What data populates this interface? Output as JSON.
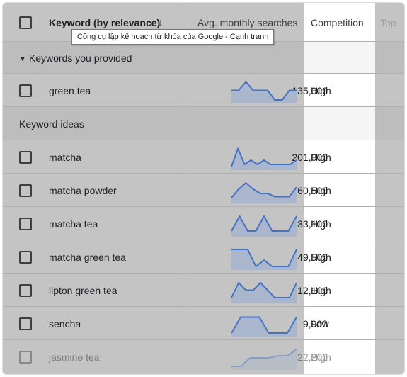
{
  "header": {
    "keyword_col": "Keyword (by relevance)",
    "sort_arrow": "↓",
    "avg_col": "Avg. monthly searches",
    "competition_col": "Competition",
    "top_col": "Top"
  },
  "tooltip": "Công cụ lập kế hoạch từ khóa của Google - Cạnh tranh",
  "sections": {
    "provided": "Keywords you provided",
    "ideas": "Keyword ideas"
  },
  "rows": [
    {
      "keyword": "green tea",
      "searches": "135,000",
      "competition": "High",
      "trend": [
        0.45,
        0.45,
        0.05,
        0.45,
        0.45,
        0.45,
        0.9,
        0.9,
        0.45,
        0.45
      ]
    },
    {
      "keyword": "matcha",
      "searches": "201,000",
      "competition": "High",
      "trend": [
        0.9,
        0.05,
        0.8,
        0.6,
        0.8,
        0.6,
        0.8,
        0.8,
        0.8,
        0.8,
        0.6
      ]
    },
    {
      "keyword": "matcha powder",
      "searches": "60,500",
      "competition": "High",
      "trend": [
        0.8,
        0.4,
        0.1,
        0.4,
        0.6,
        0.6,
        0.75,
        0.75,
        0.75,
        0.3
      ]
    },
    {
      "keyword": "matcha tea",
      "searches": "33,100",
      "competition": "High",
      "trend": [
        0.8,
        0.1,
        0.8,
        0.8,
        0.1,
        0.8,
        0.8,
        0.8,
        0.1
      ]
    },
    {
      "keyword": "matcha green tea",
      "searches": "49,500",
      "competition": "High",
      "trend": [
        0.1,
        0.1,
        0.1,
        0.9,
        0.6,
        0.9,
        0.9,
        0.9,
        0.1
      ]
    },
    {
      "keyword": "lipton green tea",
      "searches": "12,100",
      "competition": "High",
      "trend": [
        0.8,
        0.1,
        0.45,
        0.45,
        0.1,
        0.45,
        0.8,
        0.8,
        0.8,
        0.1
      ]
    },
    {
      "keyword": "sencha",
      "searches": "9,900",
      "competition": "Low",
      "trend": [
        0.9,
        0.15,
        0.15,
        0.15,
        0.9,
        0.9,
        0.9,
        0.15
      ]
    },
    {
      "keyword": "jasmine tea",
      "searches": "22,200",
      "competition": "High",
      "trend": [
        0.9,
        0.9,
        0.5,
        0.5,
        0.5,
        0.4,
        0.4,
        0.1
      ]
    }
  ],
  "colors": {
    "spark_line": "#4472c4",
    "spark_fill": "#a9b6cc"
  }
}
